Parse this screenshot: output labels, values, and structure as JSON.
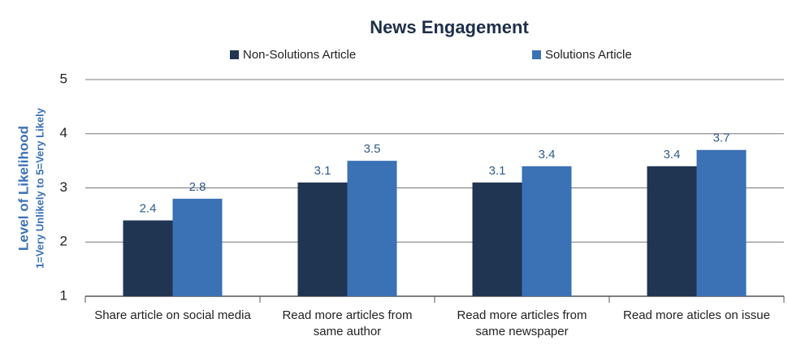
{
  "chart_data": {
    "type": "bar",
    "title": "News Engagement",
    "y_label": "Level of Likelihood",
    "y_sublabel": "1=Very Unlikely to 5=Very Likely",
    "categories": [
      "Share article on social media",
      "Read more articles from same author",
      "Read more articles from same newspaper",
      "Read more aticles on issue"
    ],
    "series": [
      {
        "name": "Non-Solutions Article",
        "color": "#1f3552",
        "values": [
          2.4,
          3.1,
          3.1,
          3.4
        ]
      },
      {
        "name": "Solutions Article",
        "color": "#3b71b5",
        "values": [
          2.8,
          3.5,
          3.4,
          3.7
        ]
      }
    ],
    "ylim": [
      1,
      5
    ],
    "yticks": [
      1,
      2,
      3,
      4,
      5
    ],
    "grid": true
  }
}
